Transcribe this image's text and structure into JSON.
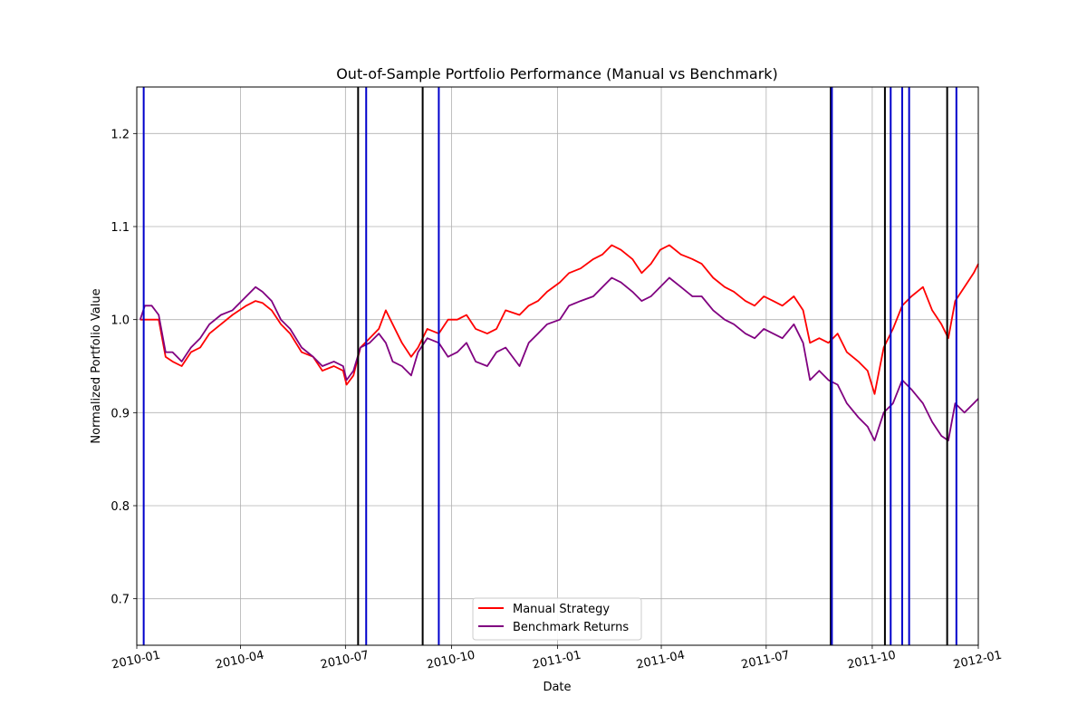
{
  "chart_data": {
    "type": "line",
    "title": "Out-of-Sample Portfolio Performance (Manual vs Benchmark)",
    "xlabel": "Date",
    "ylabel": "Normalized Portfolio Value",
    "xlim": [
      "2010-01-01",
      "2012-01-01"
    ],
    "ylim": [
      0.65,
      1.25
    ],
    "grid": true,
    "legend_position": "lower center",
    "x_ticks": [
      "2010-01",
      "2010-04",
      "2010-07",
      "2010-10",
      "2011-01",
      "2011-04",
      "2011-07",
      "2011-10",
      "2012-01"
    ],
    "y_ticks": [
      "0.7",
      "0.8",
      "0.9",
      "1.0",
      "1.1",
      "1.2"
    ],
    "series": [
      {
        "name": "Manual Strategy",
        "color": "#ff0000",
        "points": [
          [
            "2010-01-04",
            1.0
          ],
          [
            "2010-01-12",
            1.0
          ],
          [
            "2010-01-20",
            1.0
          ],
          [
            "2010-01-26",
            0.96
          ],
          [
            "2010-02-01",
            0.955
          ],
          [
            "2010-02-09",
            0.95
          ],
          [
            "2010-02-17",
            0.965
          ],
          [
            "2010-02-25",
            0.97
          ],
          [
            "2010-03-05",
            0.985
          ],
          [
            "2010-03-15",
            0.995
          ],
          [
            "2010-03-25",
            1.005
          ],
          [
            "2010-04-06",
            1.015
          ],
          [
            "2010-04-14",
            1.02
          ],
          [
            "2010-04-20",
            1.018
          ],
          [
            "2010-04-28",
            1.01
          ],
          [
            "2010-05-06",
            0.995
          ],
          [
            "2010-05-14",
            0.985
          ],
          [
            "2010-05-24",
            0.965
          ],
          [
            "2010-06-03",
            0.96
          ],
          [
            "2010-06-11",
            0.945
          ],
          [
            "2010-06-21",
            0.95
          ],
          [
            "2010-06-29",
            0.945
          ],
          [
            "2010-07-02",
            0.93
          ],
          [
            "2010-07-08",
            0.94
          ],
          [
            "2010-07-14",
            0.97
          ],
          [
            "2010-07-22",
            0.98
          ],
          [
            "2010-07-30",
            0.99
          ],
          [
            "2010-08-05",
            1.01
          ],
          [
            "2010-08-11",
            0.995
          ],
          [
            "2010-08-19",
            0.975
          ],
          [
            "2010-08-27",
            0.96
          ],
          [
            "2010-09-02",
            0.97
          ],
          [
            "2010-09-10",
            0.99
          ],
          [
            "2010-09-20",
            0.985
          ],
          [
            "2010-09-28",
            1.0
          ],
          [
            "2010-10-06",
            1.0
          ],
          [
            "2010-10-14",
            1.005
          ],
          [
            "2010-10-22",
            0.99
          ],
          [
            "2010-11-01",
            0.985
          ],
          [
            "2010-11-09",
            0.99
          ],
          [
            "2010-11-17",
            1.01
          ],
          [
            "2010-11-29",
            1.005
          ],
          [
            "2010-12-07",
            1.015
          ],
          [
            "2010-12-15",
            1.02
          ],
          [
            "2010-12-23",
            1.03
          ],
          [
            "2011-01-03",
            1.04
          ],
          [
            "2011-01-11",
            1.05
          ],
          [
            "2011-01-21",
            1.055
          ],
          [
            "2011-02-01",
            1.065
          ],
          [
            "2011-02-09",
            1.07
          ],
          [
            "2011-02-17",
            1.08
          ],
          [
            "2011-02-25",
            1.075
          ],
          [
            "2011-03-07",
            1.065
          ],
          [
            "2011-03-15",
            1.05
          ],
          [
            "2011-03-23",
            1.06
          ],
          [
            "2011-03-31",
            1.075
          ],
          [
            "2011-04-08",
            1.08
          ],
          [
            "2011-04-18",
            1.07
          ],
          [
            "2011-04-28",
            1.065
          ],
          [
            "2011-05-06",
            1.06
          ],
          [
            "2011-05-16",
            1.045
          ],
          [
            "2011-05-26",
            1.035
          ],
          [
            "2011-06-03",
            1.03
          ],
          [
            "2011-06-13",
            1.02
          ],
          [
            "2011-06-21",
            1.015
          ],
          [
            "2011-06-29",
            1.025
          ],
          [
            "2011-07-07",
            1.02
          ],
          [
            "2011-07-15",
            1.015
          ],
          [
            "2011-07-25",
            1.025
          ],
          [
            "2011-08-02",
            1.01
          ],
          [
            "2011-08-08",
            0.975
          ],
          [
            "2011-08-16",
            0.98
          ],
          [
            "2011-08-24",
            0.975
          ],
          [
            "2011-09-01",
            0.985
          ],
          [
            "2011-09-09",
            0.965
          ],
          [
            "2011-09-19",
            0.955
          ],
          [
            "2011-09-27",
            0.945
          ],
          [
            "2011-10-03",
            0.92
          ],
          [
            "2011-10-11",
            0.97
          ],
          [
            "2011-10-19",
            0.99
          ],
          [
            "2011-10-27",
            1.015
          ],
          [
            "2011-11-04",
            1.025
          ],
          [
            "2011-11-14",
            1.035
          ],
          [
            "2011-11-22",
            1.01
          ],
          [
            "2011-11-30",
            0.995
          ],
          [
            "2011-12-06",
            0.98
          ],
          [
            "2011-12-12",
            1.02
          ],
          [
            "2011-12-20",
            1.035
          ],
          [
            "2011-12-28",
            1.05
          ],
          [
            "2012-01-01",
            1.06
          ]
        ]
      },
      {
        "name": "Benchmark Returns",
        "color": "#800080",
        "points": [
          [
            "2010-01-04",
            1.0
          ],
          [
            "2010-01-08",
            1.015
          ],
          [
            "2010-01-14",
            1.015
          ],
          [
            "2010-01-20",
            1.005
          ],
          [
            "2010-01-26",
            0.965
          ],
          [
            "2010-02-01",
            0.965
          ],
          [
            "2010-02-09",
            0.955
          ],
          [
            "2010-02-17",
            0.97
          ],
          [
            "2010-02-25",
            0.98
          ],
          [
            "2010-03-05",
            0.995
          ],
          [
            "2010-03-15",
            1.005
          ],
          [
            "2010-03-25",
            1.01
          ],
          [
            "2010-04-06",
            1.025
          ],
          [
            "2010-04-14",
            1.035
          ],
          [
            "2010-04-20",
            1.03
          ],
          [
            "2010-04-28",
            1.02
          ],
          [
            "2010-05-06",
            1.0
          ],
          [
            "2010-05-14",
            0.99
          ],
          [
            "2010-05-24",
            0.97
          ],
          [
            "2010-06-03",
            0.96
          ],
          [
            "2010-06-11",
            0.95
          ],
          [
            "2010-06-21",
            0.955
          ],
          [
            "2010-06-29",
            0.95
          ],
          [
            "2010-07-02",
            0.935
          ],
          [
            "2010-07-08",
            0.945
          ],
          [
            "2010-07-14",
            0.97
          ],
          [
            "2010-07-22",
            0.975
          ],
          [
            "2010-07-30",
            0.985
          ],
          [
            "2010-08-05",
            0.975
          ],
          [
            "2010-08-11",
            0.955
          ],
          [
            "2010-08-19",
            0.95
          ],
          [
            "2010-08-27",
            0.94
          ],
          [
            "2010-09-02",
            0.965
          ],
          [
            "2010-09-10",
            0.98
          ],
          [
            "2010-09-20",
            0.975
          ],
          [
            "2010-09-28",
            0.96
          ],
          [
            "2010-10-06",
            0.965
          ],
          [
            "2010-10-14",
            0.975
          ],
          [
            "2010-10-22",
            0.955
          ],
          [
            "2010-11-01",
            0.95
          ],
          [
            "2010-11-09",
            0.965
          ],
          [
            "2010-11-17",
            0.97
          ],
          [
            "2010-11-29",
            0.95
          ],
          [
            "2010-12-07",
            0.975
          ],
          [
            "2010-12-15",
            0.985
          ],
          [
            "2010-12-23",
            0.995
          ],
          [
            "2011-01-03",
            1.0
          ],
          [
            "2011-01-11",
            1.015
          ],
          [
            "2011-01-21",
            1.02
          ],
          [
            "2011-02-01",
            1.025
          ],
          [
            "2011-02-09",
            1.035
          ],
          [
            "2011-02-17",
            1.045
          ],
          [
            "2011-02-25",
            1.04
          ],
          [
            "2011-03-07",
            1.03
          ],
          [
            "2011-03-15",
            1.02
          ],
          [
            "2011-03-23",
            1.025
          ],
          [
            "2011-03-31",
            1.035
          ],
          [
            "2011-04-08",
            1.045
          ],
          [
            "2011-04-18",
            1.035
          ],
          [
            "2011-04-28",
            1.025
          ],
          [
            "2011-05-06",
            1.025
          ],
          [
            "2011-05-16",
            1.01
          ],
          [
            "2011-05-26",
            1.0
          ],
          [
            "2011-06-03",
            0.995
          ],
          [
            "2011-06-13",
            0.985
          ],
          [
            "2011-06-21",
            0.98
          ],
          [
            "2011-06-29",
            0.99
          ],
          [
            "2011-07-07",
            0.985
          ],
          [
            "2011-07-15",
            0.98
          ],
          [
            "2011-07-25",
            0.995
          ],
          [
            "2011-08-02",
            0.975
          ],
          [
            "2011-08-08",
            0.935
          ],
          [
            "2011-08-16",
            0.945
          ],
          [
            "2011-08-24",
            0.935
          ],
          [
            "2011-09-01",
            0.93
          ],
          [
            "2011-09-09",
            0.91
          ],
          [
            "2011-09-19",
            0.895
          ],
          [
            "2011-09-27",
            0.885
          ],
          [
            "2011-10-03",
            0.87
          ],
          [
            "2011-10-11",
            0.9
          ],
          [
            "2011-10-19",
            0.91
          ],
          [
            "2011-10-27",
            0.935
          ],
          [
            "2011-11-04",
            0.925
          ],
          [
            "2011-11-14",
            0.91
          ],
          [
            "2011-11-22",
            0.89
          ],
          [
            "2011-11-30",
            0.875
          ],
          [
            "2011-12-06",
            0.87
          ],
          [
            "2011-12-12",
            0.91
          ],
          [
            "2011-12-20",
            0.9
          ],
          [
            "2011-12-28",
            0.91
          ],
          [
            "2012-01-01",
            0.915
          ]
        ]
      }
    ],
    "vertical_lines": [
      {
        "date": "2010-01-07",
        "color": "#0000cc"
      },
      {
        "date": "2010-07-12",
        "color": "#000000"
      },
      {
        "date": "2010-07-19",
        "color": "#0000cc"
      },
      {
        "date": "2010-09-06",
        "color": "#000000"
      },
      {
        "date": "2010-09-20",
        "color": "#0000cc"
      },
      {
        "date": "2011-08-26",
        "color": "#000000"
      },
      {
        "date": "2011-08-27",
        "color": "#0000cc"
      },
      {
        "date": "2011-10-12",
        "color": "#000000"
      },
      {
        "date": "2011-10-17",
        "color": "#0000cc"
      },
      {
        "date": "2011-10-27",
        "color": "#0000cc"
      },
      {
        "date": "2011-11-02",
        "color": "#0000cc"
      },
      {
        "date": "2011-12-05",
        "color": "#000000"
      },
      {
        "date": "2011-12-13",
        "color": "#0000cc"
      }
    ]
  }
}
